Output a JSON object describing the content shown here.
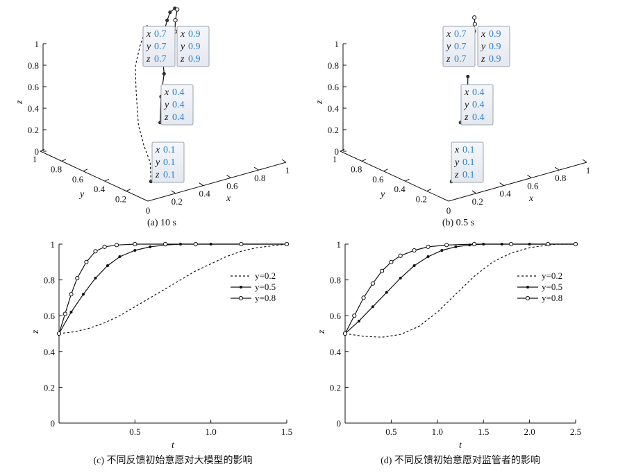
{
  "chart_data": [
    {
      "type": "line3d",
      "caption": "(a) 10 s",
      "xlabel": "x",
      "ylabel": "y",
      "zlabel": "z",
      "x_ticks": [
        "0.2",
        "0.4",
        "0.6",
        "0.8",
        "1"
      ],
      "y_ticks": [
        "1",
        "0.8",
        "0.6",
        "0.4",
        "0.2"
      ],
      "z_ticks": [
        "0",
        "0.2",
        "0.4",
        "0.6",
        "0.8",
        "1"
      ],
      "origin_label": "0",
      "xlim": [
        0,
        1
      ],
      "ylim": [
        0,
        1
      ],
      "zlim": [
        0,
        1
      ],
      "series": [
        {
          "style": "dashed",
          "points": [
            [
              0.1,
              0.1,
              0.1
            ],
            [
              0.25,
              0.3,
              0.13
            ],
            [
              0.32,
              0.45,
              0.2
            ],
            [
              0.36,
              0.55,
              0.32
            ],
            [
              0.39,
              0.6,
              0.45
            ],
            [
              0.42,
              0.65,
              0.6
            ],
            [
              0.47,
              0.72,
              0.75
            ],
            [
              0.55,
              0.78,
              0.88
            ],
            [
              0.7,
              0.9,
              0.98
            ]
          ]
        },
        {
          "style": "solid-dots",
          "points": [
            [
              0.4,
              0.4,
              0.4
            ],
            [
              0.5,
              0.52,
              0.55
            ],
            [
              0.6,
              0.62,
              0.68
            ],
            [
              0.68,
              0.74,
              0.8
            ],
            [
              0.75,
              0.82,
              0.9
            ],
            [
              0.84,
              0.9,
              0.96
            ],
            [
              0.9,
              0.95,
              0.99
            ],
            [
              0.95,
              0.97,
              1.0
            ]
          ]
        },
        {
          "style": "solid-circles",
          "points": [
            [
              0.7,
              0.7,
              0.7
            ],
            [
              0.78,
              0.78,
              0.8
            ],
            [
              0.85,
              0.84,
              0.88
            ],
            [
              0.9,
              0.9,
              0.94
            ],
            [
              0.96,
              0.96,
              0.99
            ]
          ]
        }
      ],
      "tooltips": [
        {
          "x": "0.7",
          "y": "0.7",
          "z": "0.7"
        },
        {
          "x": "0.9",
          "y": "0.9",
          "z": "0.9"
        },
        {
          "x": "0.4",
          "y": "0.4",
          "z": "0.4"
        },
        {
          "x": "0.1",
          "y": "0.1",
          "z": "0.1"
        }
      ]
    },
    {
      "type": "line3d",
      "caption": "(b) 0.5 s",
      "xlabel": "x",
      "ylabel": "y",
      "zlabel": "z",
      "x_ticks": [
        "0.2",
        "0.4",
        "0.6",
        "0.8",
        "1"
      ],
      "y_ticks": [
        "1",
        "0.8",
        "0.6",
        "0.4",
        "0.2"
      ],
      "z_ticks": [
        "0",
        "0.2",
        "0.4",
        "0.6",
        "0.8",
        "1"
      ],
      "origin_label": "0",
      "xlim": [
        0,
        1
      ],
      "ylim": [
        0,
        1
      ],
      "zlim": [
        0,
        1
      ],
      "series": [
        {
          "style": "dashed",
          "points": [
            [
              0.1,
              0.1,
              0.1
            ],
            [
              0.12,
              0.11,
              0.105
            ]
          ]
        },
        {
          "style": "solid-dots",
          "points": [
            [
              0.4,
              0.4,
              0.4
            ],
            [
              0.46,
              0.45,
              0.47
            ],
            [
              0.52,
              0.5,
              0.54
            ],
            [
              0.57,
              0.55,
              0.6
            ],
            [
              0.61,
              0.6,
              0.66
            ]
          ]
        },
        {
          "style": "solid-circles",
          "points": [
            [
              0.7,
              0.7,
              0.7
            ],
            [
              0.75,
              0.75,
              0.76
            ],
            [
              0.8,
              0.8,
              0.82
            ],
            [
              0.85,
              0.85,
              0.88
            ],
            [
              0.88,
              0.88,
              0.92
            ],
            [
              0.9,
              0.91,
              0.96
            ]
          ]
        }
      ],
      "tooltips": [
        {
          "x": "0.7",
          "y": "0.7",
          "z": "0.7"
        },
        {
          "x": "0.9",
          "y": "0.9",
          "z": "0.9"
        },
        {
          "x": "0.4",
          "y": "0.4",
          "z": "0.4"
        },
        {
          "x": "0.1",
          "y": "0.1",
          "z": "0.1"
        }
      ]
    },
    {
      "type": "line",
      "caption": "(c) 不同反馈初始意愿对大模型的影响",
      "xlabel": "t",
      "ylabel": "z",
      "xlim": [
        0,
        1.5
      ],
      "ylim": [
        0,
        1
      ],
      "x_ticks": [
        "0.5",
        "1.0",
        "1.5"
      ],
      "y_ticks": [
        "0",
        "0.2",
        "0.4",
        "0.6",
        "0.8",
        "1"
      ],
      "legend_position": "right",
      "series": [
        {
          "name": "y=0.2",
          "style": "dashed",
          "x": [
            0,
            0.1,
            0.2,
            0.3,
            0.4,
            0.5,
            0.6,
            0.7,
            0.8,
            0.9,
            1.0,
            1.1,
            1.2,
            1.3,
            1.4,
            1.5
          ],
          "y": [
            0.5,
            0.51,
            0.53,
            0.56,
            0.6,
            0.65,
            0.7,
            0.75,
            0.8,
            0.85,
            0.89,
            0.93,
            0.96,
            0.98,
            0.99,
            1.0
          ]
        },
        {
          "name": "y=0.5",
          "style": "solid-dots",
          "x": [
            0,
            0.08,
            0.16,
            0.24,
            0.32,
            0.4,
            0.5,
            0.6,
            0.7,
            0.8,
            0.9,
            1.0,
            1.2,
            1.5
          ],
          "y": [
            0.5,
            0.62,
            0.72,
            0.81,
            0.88,
            0.93,
            0.965,
            0.985,
            0.995,
            1.0,
            1.0,
            1.0,
            1.0,
            1.0
          ]
        },
        {
          "name": "y=0.8",
          "style": "solid-circles",
          "x": [
            0,
            0.04,
            0.08,
            0.12,
            0.18,
            0.24,
            0.3,
            0.38,
            0.5,
            0.7,
            0.9,
            1.2,
            1.5
          ],
          "y": [
            0.5,
            0.61,
            0.72,
            0.81,
            0.9,
            0.96,
            0.985,
            0.995,
            1.0,
            1.0,
            1.0,
            1.0,
            1.0
          ]
        }
      ]
    },
    {
      "type": "line",
      "caption": "(d) 不同反馈初始意愿对监管者的影响",
      "xlabel": "t",
      "ylabel": "z",
      "xlim": [
        0,
        2.5
      ],
      "ylim": [
        0,
        1
      ],
      "x_ticks": [
        "0.5",
        "1.0",
        "1.5",
        "2.0",
        "2.5"
      ],
      "y_ticks": [
        "0",
        "0.2",
        "0.4",
        "0.6",
        "0.8",
        "1"
      ],
      "legend_position": "right",
      "series": [
        {
          "name": "y=0.2",
          "style": "dashed",
          "x": [
            0,
            0.2,
            0.4,
            0.6,
            0.8,
            1.0,
            1.2,
            1.4,
            1.6,
            1.8,
            2.0,
            2.2,
            2.3,
            2.5
          ],
          "y": [
            0.5,
            0.485,
            0.48,
            0.495,
            0.54,
            0.62,
            0.72,
            0.82,
            0.9,
            0.95,
            0.98,
            0.995,
            1.0,
            1.0
          ]
        },
        {
          "name": "y=0.5",
          "style": "solid-dots",
          "x": [
            0,
            0.15,
            0.3,
            0.45,
            0.6,
            0.75,
            0.9,
            1.05,
            1.2,
            1.35,
            1.5,
            1.7,
            2.0,
            2.5
          ],
          "y": [
            0.5,
            0.57,
            0.65,
            0.73,
            0.81,
            0.88,
            0.93,
            0.965,
            0.985,
            0.995,
            1.0,
            1.0,
            1.0,
            1.0
          ]
        },
        {
          "name": "y=0.8",
          "style": "solid-circles",
          "x": [
            0,
            0.1,
            0.2,
            0.3,
            0.4,
            0.5,
            0.6,
            0.75,
            0.9,
            1.1,
            1.4,
            1.8,
            2.2,
            2.5
          ],
          "y": [
            0.5,
            0.6,
            0.7,
            0.78,
            0.85,
            0.9,
            0.935,
            0.965,
            0.985,
            0.995,
            1.0,
            1.0,
            1.0,
            1.0
          ]
        }
      ]
    }
  ]
}
